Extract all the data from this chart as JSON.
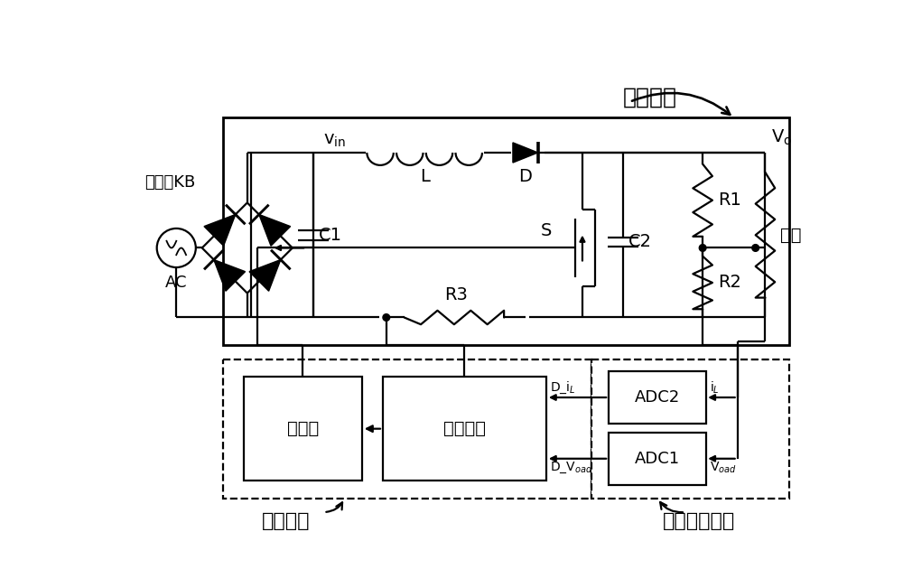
{
  "bg_color": "#ffffff",
  "line_color": "#000000",
  "line_width": 1.6,
  "fig_width": 10.0,
  "fig_height": 6.51,
  "labels": {
    "power_circuit": "功率电路",
    "control_circuit": "控制电路",
    "dac_circuit": "数模转换电路",
    "bridge": "整流桥KB",
    "ac": "AC",
    "L": "L",
    "D": "D",
    "S": "S",
    "C1": "C1",
    "C2": "C2",
    "R1": "R1",
    "R2": "R2",
    "R3": "R3",
    "load": "负载",
    "gate_driver": "栅驱动",
    "control_chip": "控制芯片",
    "ADC1": "ADC1",
    "ADC2": "ADC2"
  }
}
